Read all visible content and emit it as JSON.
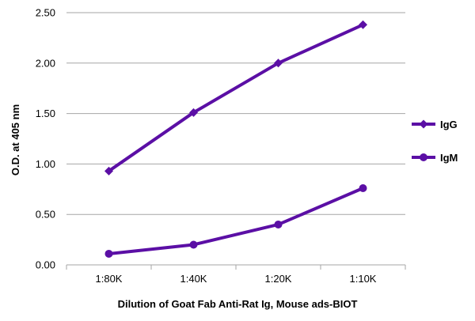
{
  "chart_data": {
    "type": "line",
    "categories": [
      "1:80K",
      "1:40K",
      "1:20K",
      "1:10K"
    ],
    "series": [
      {
        "name": "IgG",
        "values": [
          0.93,
          1.51,
          2.0,
          2.38
        ],
        "marker": "diamond",
        "color": "#5b0fa5"
      },
      {
        "name": "IgM",
        "values": [
          0.11,
          0.2,
          0.4,
          0.76
        ],
        "marker": "circle",
        "color": "#5b0fa5"
      }
    ],
    "ylim": [
      0,
      2.5
    ],
    "yticks": [
      "0.00",
      "0.50",
      "1.00",
      "1.50",
      "2.00",
      "2.50"
    ],
    "ytick_values": [
      0,
      0.5,
      1.0,
      1.5,
      2.0,
      2.5
    ],
    "xlabel": "Dilution of Goat Fab Anti-Rat Ig, Mouse ads-BIOT",
    "ylabel": "O.D. at 405 nm",
    "grid": true,
    "legend_position": "right",
    "grid_color": "#a6a6a6"
  }
}
